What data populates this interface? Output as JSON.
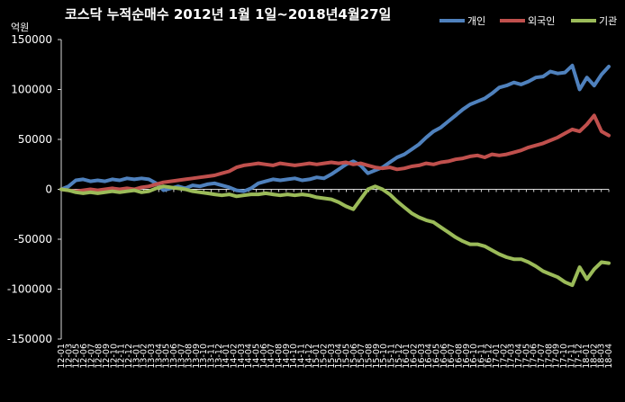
{
  "chart_data": {
    "type": "line",
    "title": "코스닥 누적순매수 2012년 1월 1일~2018년4월27일",
    "ylabel": "억원",
    "ylim": [
      -150000,
      150000
    ],
    "yticks": [
      150000,
      100000,
      50000,
      0,
      -50000,
      -100000,
      -150000
    ],
    "grid": false,
    "legend_position": "top-right",
    "x_tick_labels": [
      "12-01",
      "12-03",
      "12-05",
      "12-06",
      "12-07",
      "12-08",
      "12-09",
      "12-10",
      "12-11",
      "12-12",
      "13-01",
      "13-02",
      "13-03",
      "13-04",
      "13-05",
      "13-06",
      "13-07",
      "13-08",
      "13-09",
      "13-10",
      "13-11",
      "13-12",
      "14-01",
      "14-02",
      "14-03",
      "14-04",
      "14-05",
      "14-06",
      "14-07",
      "14-08",
      "14-09",
      "14-10",
      "14-11",
      "14-12",
      "15-01",
      "15-02",
      "15-03",
      "15-04",
      "15-05",
      "15-06",
      "15-07",
      "15-08",
      "15-09",
      "15-10",
      "15-11",
      "15-12",
      "16-01",
      "16-02",
      "16-03",
      "16-04",
      "16-05",
      "16-06",
      "16-07",
      "16-08",
      "16-09",
      "16-10",
      "16-11",
      "16-12",
      "17-01",
      "17-02",
      "17-03",
      "17-04",
      "17-05",
      "17-06",
      "17-07",
      "17-08",
      "17-09",
      "17-10",
      "17-11",
      "17-12",
      "18-01",
      "18-02",
      "18-03",
      "18-04"
    ],
    "x_range": [
      "2012-01",
      "2018-04"
    ],
    "series": [
      {
        "name": "개인",
        "color": "#4f81bd",
        "points": [
          [
            "2012-01",
            0
          ],
          [
            "2012-02",
            3000
          ],
          [
            "2012-03",
            9000
          ],
          [
            "2012-04",
            10000
          ],
          [
            "2012-05",
            8000
          ],
          [
            "2012-06",
            9000
          ],
          [
            "2012-07",
            8000
          ],
          [
            "2012-08",
            10000
          ],
          [
            "2012-09",
            9000
          ],
          [
            "2012-10",
            11000
          ],
          [
            "2012-11",
            10000
          ],
          [
            "2012-12",
            11000
          ],
          [
            "2013-01",
            10000
          ],
          [
            "2013-02",
            6000
          ],
          [
            "2013-03",
            -1000
          ],
          [
            "2013-04",
            1000
          ],
          [
            "2013-05",
            3000
          ],
          [
            "2013-06",
            1000
          ],
          [
            "2013-07",
            4000
          ],
          [
            "2013-08",
            3000
          ],
          [
            "2013-09",
            5000
          ],
          [
            "2013-10",
            6000
          ],
          [
            "2013-11",
            4000
          ],
          [
            "2013-12",
            2000
          ],
          [
            "2014-01",
            -1000
          ],
          [
            "2014-02",
            -2000
          ],
          [
            "2014-03",
            1000
          ],
          [
            "2014-04",
            6000
          ],
          [
            "2014-05",
            8000
          ],
          [
            "2014-06",
            10000
          ],
          [
            "2014-07",
            9000
          ],
          [
            "2014-08",
            10000
          ],
          [
            "2014-09",
            11000
          ],
          [
            "2014-10",
            9000
          ],
          [
            "2014-11",
            10000
          ],
          [
            "2014-12",
            12000
          ],
          [
            "2015-01",
            11000
          ],
          [
            "2015-02",
            15000
          ],
          [
            "2015-03",
            20000
          ],
          [
            "2015-04",
            25000
          ],
          [
            "2015-05",
            28000
          ],
          [
            "2015-06",
            24000
          ],
          [
            "2015-07",
            16000
          ],
          [
            "2015-08",
            19000
          ],
          [
            "2015-09",
            22000
          ],
          [
            "2015-10",
            27000
          ],
          [
            "2015-11",
            32000
          ],
          [
            "2015-12",
            35000
          ],
          [
            "2016-01",
            40000
          ],
          [
            "2016-02",
            45000
          ],
          [
            "2016-03",
            52000
          ],
          [
            "2016-04",
            58000
          ],
          [
            "2016-05",
            62000
          ],
          [
            "2016-06",
            68000
          ],
          [
            "2016-07",
            74000
          ],
          [
            "2016-08",
            80000
          ],
          [
            "2016-09",
            85000
          ],
          [
            "2016-10",
            88000
          ],
          [
            "2016-11",
            91000
          ],
          [
            "2016-12",
            96000
          ],
          [
            "2017-01",
            102000
          ],
          [
            "2017-02",
            104000
          ],
          [
            "2017-03",
            107000
          ],
          [
            "2017-04",
            105000
          ],
          [
            "2017-05",
            108000
          ],
          [
            "2017-06",
            112000
          ],
          [
            "2017-07",
            113000
          ],
          [
            "2017-08",
            118000
          ],
          [
            "2017-09",
            116000
          ],
          [
            "2017-10",
            117000
          ],
          [
            "2017-11",
            124000
          ],
          [
            "2017-12",
            100000
          ],
          [
            "2018-01",
            112000
          ],
          [
            "2018-02",
            104000
          ],
          [
            "2018-03",
            115000
          ],
          [
            "2018-04",
            123000
          ]
        ]
      },
      {
        "name": "외국인",
        "color": "#c0504d",
        "points": [
          [
            "2012-01",
            0
          ],
          [
            "2012-02",
            -1000
          ],
          [
            "2012-03",
            -2000
          ],
          [
            "2012-04",
            -1000
          ],
          [
            "2012-05",
            0
          ],
          [
            "2012-06",
            -1000
          ],
          [
            "2012-07",
            0
          ],
          [
            "2012-08",
            1000
          ],
          [
            "2012-09",
            0
          ],
          [
            "2012-10",
            1000
          ],
          [
            "2012-11",
            0
          ],
          [
            "2012-12",
            2000
          ],
          [
            "2013-01",
            3000
          ],
          [
            "2013-02",
            5000
          ],
          [
            "2013-03",
            7000
          ],
          [
            "2013-04",
            8000
          ],
          [
            "2013-05",
            9000
          ],
          [
            "2013-06",
            10000
          ],
          [
            "2013-07",
            11000
          ],
          [
            "2013-08",
            12000
          ],
          [
            "2013-09",
            13000
          ],
          [
            "2013-10",
            14000
          ],
          [
            "2013-11",
            16000
          ],
          [
            "2013-12",
            18000
          ],
          [
            "2014-01",
            22000
          ],
          [
            "2014-02",
            24000
          ],
          [
            "2014-03",
            25000
          ],
          [
            "2014-04",
            26000
          ],
          [
            "2014-05",
            25000
          ],
          [
            "2014-06",
            24000
          ],
          [
            "2014-07",
            26000
          ],
          [
            "2014-08",
            25000
          ],
          [
            "2014-09",
            24000
          ],
          [
            "2014-10",
            25000
          ],
          [
            "2014-11",
            26000
          ],
          [
            "2014-12",
            25000
          ],
          [
            "2015-01",
            26000
          ],
          [
            "2015-02",
            27000
          ],
          [
            "2015-03",
            26000
          ],
          [
            "2015-04",
            27000
          ],
          [
            "2015-05",
            25000
          ],
          [
            "2015-06",
            26000
          ],
          [
            "2015-07",
            24000
          ],
          [
            "2015-08",
            22000
          ],
          [
            "2015-09",
            21000
          ],
          [
            "2015-10",
            22000
          ],
          [
            "2015-11",
            20000
          ],
          [
            "2015-12",
            21000
          ],
          [
            "2016-01",
            23000
          ],
          [
            "2016-02",
            24000
          ],
          [
            "2016-03",
            26000
          ],
          [
            "2016-04",
            25000
          ],
          [
            "2016-05",
            27000
          ],
          [
            "2016-06",
            28000
          ],
          [
            "2016-07",
            30000
          ],
          [
            "2016-08",
            31000
          ],
          [
            "2016-09",
            33000
          ],
          [
            "2016-10",
            34000
          ],
          [
            "2016-11",
            32000
          ],
          [
            "2016-12",
            35000
          ],
          [
            "2017-01",
            34000
          ],
          [
            "2017-02",
            35000
          ],
          [
            "2017-03",
            37000
          ],
          [
            "2017-04",
            39000
          ],
          [
            "2017-05",
            42000
          ],
          [
            "2017-06",
            44000
          ],
          [
            "2017-07",
            46000
          ],
          [
            "2017-08",
            49000
          ],
          [
            "2017-09",
            52000
          ],
          [
            "2017-10",
            56000
          ],
          [
            "2017-11",
            60000
          ],
          [
            "2017-12",
            58000
          ],
          [
            "2018-01",
            65000
          ],
          [
            "2018-02",
            74000
          ],
          [
            "2018-03",
            58000
          ],
          [
            "2018-04",
            54000
          ]
        ]
      },
      {
        "name": "기관",
        "color": "#9bbb59",
        "points": [
          [
            "2012-01",
            0
          ],
          [
            "2012-02",
            -1000
          ],
          [
            "2012-03",
            -3000
          ],
          [
            "2012-04",
            -4000
          ],
          [
            "2012-05",
            -3000
          ],
          [
            "2012-06",
            -4000
          ],
          [
            "2012-07",
            -3000
          ],
          [
            "2012-08",
            -2000
          ],
          [
            "2012-09",
            -3000
          ],
          [
            "2012-10",
            -2000
          ],
          [
            "2012-11",
            -1000
          ],
          [
            "2012-12",
            -3000
          ],
          [
            "2013-01",
            -2000
          ],
          [
            "2013-02",
            1000
          ],
          [
            "2013-03",
            3000
          ],
          [
            "2013-04",
            2000
          ],
          [
            "2013-05",
            1000
          ],
          [
            "2013-06",
            0
          ],
          [
            "2013-07",
            -2000
          ],
          [
            "2013-08",
            -3000
          ],
          [
            "2013-09",
            -4000
          ],
          [
            "2013-10",
            -5000
          ],
          [
            "2013-11",
            -6000
          ],
          [
            "2013-12",
            -5000
          ],
          [
            "2014-01",
            -7000
          ],
          [
            "2014-02",
            -6000
          ],
          [
            "2014-03",
            -5000
          ],
          [
            "2014-04",
            -5000
          ],
          [
            "2014-05",
            -4000
          ],
          [
            "2014-06",
            -5000
          ],
          [
            "2014-07",
            -6000
          ],
          [
            "2014-08",
            -5000
          ],
          [
            "2014-09",
            -6000
          ],
          [
            "2014-10",
            -5000
          ],
          [
            "2014-11",
            -6000
          ],
          [
            "2014-12",
            -8000
          ],
          [
            "2015-01",
            -9000
          ],
          [
            "2015-02",
            -10000
          ],
          [
            "2015-03",
            -13000
          ],
          [
            "2015-04",
            -17000
          ],
          [
            "2015-05",
            -20000
          ],
          [
            "2015-06",
            -10000
          ],
          [
            "2015-07",
            0
          ],
          [
            "2015-08",
            3000
          ],
          [
            "2015-09",
            0
          ],
          [
            "2015-10",
            -5000
          ],
          [
            "2015-11",
            -12000
          ],
          [
            "2015-12",
            -18000
          ],
          [
            "2016-01",
            -24000
          ],
          [
            "2016-02",
            -28000
          ],
          [
            "2016-03",
            -31000
          ],
          [
            "2016-04",
            -33000
          ],
          [
            "2016-05",
            -38000
          ],
          [
            "2016-06",
            -43000
          ],
          [
            "2016-07",
            -48000
          ],
          [
            "2016-08",
            -52000
          ],
          [
            "2016-09",
            -55000
          ],
          [
            "2016-10",
            -55000
          ],
          [
            "2016-11",
            -57000
          ],
          [
            "2016-12",
            -61000
          ],
          [
            "2017-01",
            -65000
          ],
          [
            "2017-02",
            -68000
          ],
          [
            "2017-03",
            -70000
          ],
          [
            "2017-04",
            -70000
          ],
          [
            "2017-05",
            -73000
          ],
          [
            "2017-06",
            -77000
          ],
          [
            "2017-07",
            -82000
          ],
          [
            "2017-08",
            -85000
          ],
          [
            "2017-09",
            -88000
          ],
          [
            "2017-10",
            -93000
          ],
          [
            "2017-11",
            -96000
          ],
          [
            "2017-12",
            -78000
          ],
          [
            "2018-01",
            -90000
          ],
          [
            "2018-02",
            -80000
          ],
          [
            "2018-03",
            -73000
          ],
          [
            "2018-04",
            -74000
          ]
        ]
      }
    ]
  }
}
